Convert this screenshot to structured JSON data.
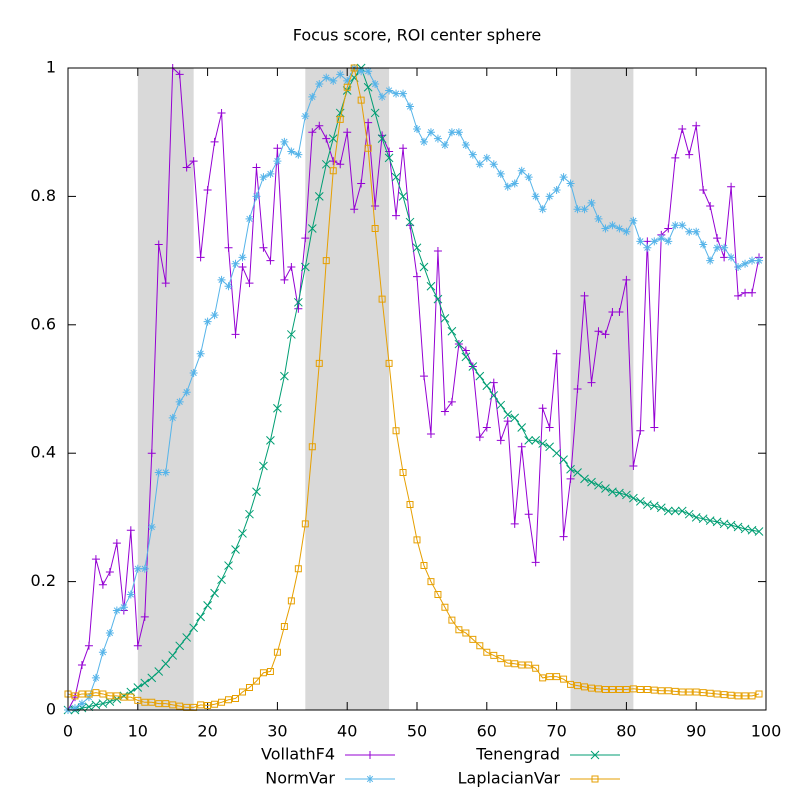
{
  "chart_data": {
    "type": "line",
    "title": "Focus score, ROI center sphere",
    "x": [
      0,
      1,
      2,
      3,
      4,
      5,
      6,
      7,
      8,
      9,
      10,
      11,
      12,
      13,
      14,
      15,
      16,
      17,
      18,
      19,
      20,
      21,
      22,
      23,
      24,
      25,
      26,
      27,
      28,
      29,
      30,
      31,
      32,
      33,
      34,
      35,
      36,
      37,
      38,
      39,
      40,
      41,
      42,
      43,
      44,
      45,
      46,
      47,
      48,
      49,
      50,
      51,
      52,
      53,
      54,
      55,
      56,
      57,
      58,
      59,
      60,
      61,
      62,
      63,
      64,
      65,
      66,
      67,
      68,
      69,
      70,
      71,
      72,
      73,
      74,
      75,
      76,
      77,
      78,
      79,
      80,
      81,
      82,
      83,
      84,
      85,
      86,
      87,
      88,
      89,
      90,
      91,
      92,
      93,
      94,
      95,
      96,
      97,
      98,
      99
    ],
    "series": [
      {
        "name": "VollathF4",
        "color": "#9400d3",
        "marker": "plus",
        "values": [
          0.0,
          0.02,
          0.07,
          0.1,
          0.235,
          0.195,
          0.215,
          0.26,
          0.155,
          0.28,
          0.1,
          0.145,
          0.4,
          0.725,
          0.665,
          1.0,
          0.99,
          0.845,
          0.855,
          0.705,
          0.81,
          0.885,
          0.93,
          0.72,
          0.585,
          0.69,
          0.665,
          0.845,
          0.72,
          0.7,
          0.875,
          0.67,
          0.69,
          0.625,
          0.735,
          0.9,
          0.91,
          0.89,
          0.855,
          0.85,
          0.9,
          0.78,
          0.82,
          0.915,
          0.785,
          0.895,
          0.87,
          0.77,
          0.875,
          0.755,
          0.675,
          0.52,
          0.43,
          0.715,
          0.465,
          0.48,
          0.57,
          0.56,
          0.535,
          0.425,
          0.44,
          0.51,
          0.42,
          0.45,
          0.29,
          0.41,
          0.305,
          0.23,
          0.47,
          0.44,
          0.555,
          0.27,
          0.36,
          0.5,
          0.645,
          0.51,
          0.59,
          0.585,
          0.62,
          0.62,
          0.67,
          0.38,
          0.435,
          0.73,
          0.44,
          0.74,
          0.75,
          0.86,
          0.905,
          0.865,
          0.91,
          0.81,
          0.785,
          0.735,
          0.705,
          0.815,
          0.645,
          0.65,
          0.65,
          0.705
        ]
      },
      {
        "name": "Tenengrad",
        "color": "#009e73",
        "marker": "cross",
        "values": [
          0.0,
          0.0,
          0.003,
          0.005,
          0.008,
          0.01,
          0.013,
          0.017,
          0.022,
          0.028,
          0.035,
          0.042,
          0.05,
          0.06,
          0.072,
          0.085,
          0.1,
          0.113,
          0.128,
          0.145,
          0.163,
          0.182,
          0.203,
          0.225,
          0.25,
          0.275,
          0.305,
          0.34,
          0.38,
          0.42,
          0.47,
          0.52,
          0.585,
          0.635,
          0.69,
          0.75,
          0.8,
          0.85,
          0.89,
          0.93,
          0.965,
          0.985,
          1.0,
          0.97,
          0.93,
          0.89,
          0.86,
          0.83,
          0.8,
          0.76,
          0.72,
          0.69,
          0.66,
          0.64,
          0.61,
          0.59,
          0.57,
          0.55,
          0.535,
          0.52,
          0.505,
          0.49,
          0.475,
          0.46,
          0.455,
          0.44,
          0.42,
          0.42,
          0.415,
          0.41,
          0.4,
          0.39,
          0.375,
          0.37,
          0.36,
          0.355,
          0.35,
          0.345,
          0.34,
          0.338,
          0.335,
          0.33,
          0.325,
          0.32,
          0.318,
          0.315,
          0.31,
          0.31,
          0.31,
          0.305,
          0.3,
          0.298,
          0.295,
          0.293,
          0.29,
          0.288,
          0.285,
          0.282,
          0.28,
          0.278
        ]
      },
      {
        "name": "NormVar",
        "color": "#56b4e9",
        "marker": "star",
        "values": [
          0.0,
          0.003,
          0.01,
          0.02,
          0.05,
          0.09,
          0.12,
          0.155,
          0.16,
          0.18,
          0.22,
          0.22,
          0.285,
          0.37,
          0.37,
          0.455,
          0.48,
          0.495,
          0.525,
          0.555,
          0.605,
          0.615,
          0.67,
          0.66,
          0.695,
          0.705,
          0.765,
          0.8,
          0.83,
          0.835,
          0.855,
          0.885,
          0.87,
          0.865,
          0.925,
          0.955,
          0.975,
          0.985,
          0.98,
          0.99,
          0.98,
          1.0,
          0.995,
          0.995,
          0.975,
          0.955,
          0.965,
          0.96,
          0.96,
          0.94,
          0.905,
          0.885,
          0.9,
          0.89,
          0.88,
          0.9,
          0.9,
          0.88,
          0.865,
          0.85,
          0.86,
          0.85,
          0.835,
          0.815,
          0.82,
          0.84,
          0.83,
          0.8,
          0.78,
          0.8,
          0.81,
          0.83,
          0.82,
          0.78,
          0.78,
          0.79,
          0.765,
          0.75,
          0.755,
          0.75,
          0.745,
          0.762,
          0.73,
          0.72,
          0.73,
          0.735,
          0.73,
          0.755,
          0.755,
          0.745,
          0.745,
          0.725,
          0.7,
          0.72,
          0.72,
          0.705,
          0.69,
          0.695,
          0.7,
          0.7
        ]
      },
      {
        "name": "LaplacianVar",
        "color": "#e69f00",
        "marker": "square",
        "values": [
          0.025,
          0.022,
          0.025,
          0.025,
          0.027,
          0.025,
          0.022,
          0.022,
          0.02,
          0.02,
          0.015,
          0.012,
          0.012,
          0.01,
          0.01,
          0.008,
          0.006,
          0.004,
          0.004,
          0.008,
          0.007,
          0.009,
          0.012,
          0.016,
          0.018,
          0.028,
          0.035,
          0.045,
          0.058,
          0.06,
          0.09,
          0.13,
          0.17,
          0.22,
          0.29,
          0.41,
          0.54,
          0.7,
          0.84,
          0.92,
          0.97,
          1.0,
          0.95,
          0.875,
          0.75,
          0.64,
          0.54,
          0.435,
          0.37,
          0.32,
          0.265,
          0.225,
          0.2,
          0.18,
          0.16,
          0.14,
          0.125,
          0.12,
          0.11,
          0.1,
          0.09,
          0.085,
          0.08,
          0.073,
          0.072,
          0.07,
          0.07,
          0.065,
          0.05,
          0.052,
          0.052,
          0.048,
          0.04,
          0.038,
          0.036,
          0.034,
          0.033,
          0.032,
          0.032,
          0.032,
          0.032,
          0.033,
          0.032,
          0.032,
          0.031,
          0.03,
          0.03,
          0.029,
          0.028,
          0.028,
          0.028,
          0.027,
          0.026,
          0.025,
          0.024,
          0.023,
          0.022,
          0.022,
          0.022,
          0.025
        ]
      }
    ],
    "shaded_regions": [
      [
        10,
        18
      ],
      [
        34,
        46
      ],
      [
        72,
        81
      ]
    ],
    "shade_color": "#d9d9d9",
    "xlim": [
      0,
      100
    ],
    "xticks": [
      0,
      10,
      20,
      30,
      40,
      50,
      60,
      70,
      80,
      90,
      100
    ],
    "ylim": [
      0,
      1
    ],
    "yticks": [
      0,
      0.2,
      0.4,
      0.6,
      0.8,
      1
    ],
    "grid": false,
    "legend": "bottom"
  }
}
